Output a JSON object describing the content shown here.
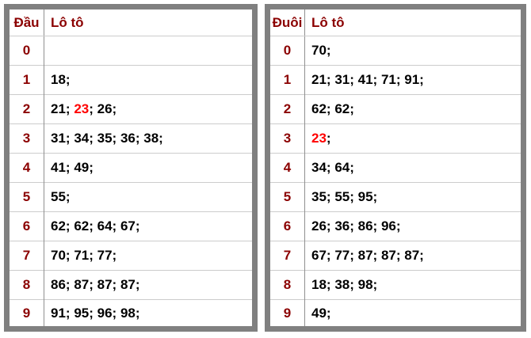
{
  "colors": {
    "table_border": "#808080",
    "column_divider": "#909090",
    "row_divider": "#cccccc",
    "header_text": "#8b0000",
    "value_text": "#000000",
    "highlight_text": "#ff0000"
  },
  "separator": "; ",
  "tables": [
    {
      "id": "dau",
      "header": {
        "digit_label": "Đầu",
        "values_label": "Lô tô"
      },
      "rows": [
        {
          "digit": "0",
          "values": []
        },
        {
          "digit": "1",
          "values": [
            {
              "text": "18",
              "highlight": false
            }
          ]
        },
        {
          "digit": "2",
          "values": [
            {
              "text": "21",
              "highlight": false
            },
            {
              "text": "23",
              "highlight": true
            },
            {
              "text": "26",
              "highlight": false
            }
          ]
        },
        {
          "digit": "3",
          "values": [
            {
              "text": "31",
              "highlight": false
            },
            {
              "text": "34",
              "highlight": false
            },
            {
              "text": "35",
              "highlight": false
            },
            {
              "text": "36",
              "highlight": false
            },
            {
              "text": "38",
              "highlight": false
            }
          ]
        },
        {
          "digit": "4",
          "values": [
            {
              "text": "41",
              "highlight": false
            },
            {
              "text": "49",
              "highlight": false
            }
          ]
        },
        {
          "digit": "5",
          "values": [
            {
              "text": "55",
              "highlight": false
            }
          ]
        },
        {
          "digit": "6",
          "values": [
            {
              "text": "62",
              "highlight": false
            },
            {
              "text": "62",
              "highlight": false
            },
            {
              "text": "64",
              "highlight": false
            },
            {
              "text": "67",
              "highlight": false
            }
          ]
        },
        {
          "digit": "7",
          "values": [
            {
              "text": "70",
              "highlight": false
            },
            {
              "text": "71",
              "highlight": false
            },
            {
              "text": "77",
              "highlight": false
            }
          ]
        },
        {
          "digit": "8",
          "values": [
            {
              "text": "86",
              "highlight": false
            },
            {
              "text": "87",
              "highlight": false
            },
            {
              "text": "87",
              "highlight": false
            },
            {
              "text": "87",
              "highlight": false
            }
          ]
        },
        {
          "digit": "9",
          "values": [
            {
              "text": "91",
              "highlight": false
            },
            {
              "text": "95",
              "highlight": false
            },
            {
              "text": "96",
              "highlight": false
            },
            {
              "text": "98",
              "highlight": false
            }
          ]
        }
      ]
    },
    {
      "id": "duoi",
      "header": {
        "digit_label": "Đuôi",
        "values_label": "Lô tô"
      },
      "rows": [
        {
          "digit": "0",
          "values": [
            {
              "text": "70",
              "highlight": false
            }
          ]
        },
        {
          "digit": "1",
          "values": [
            {
              "text": "21",
              "highlight": false
            },
            {
              "text": "31",
              "highlight": false
            },
            {
              "text": "41",
              "highlight": false
            },
            {
              "text": "71",
              "highlight": false
            },
            {
              "text": "91",
              "highlight": false
            }
          ]
        },
        {
          "digit": "2",
          "values": [
            {
              "text": "62",
              "highlight": false
            },
            {
              "text": "62",
              "highlight": false
            }
          ]
        },
        {
          "digit": "3",
          "values": [
            {
              "text": "23",
              "highlight": true
            }
          ]
        },
        {
          "digit": "4",
          "values": [
            {
              "text": "34",
              "highlight": false
            },
            {
              "text": "64",
              "highlight": false
            }
          ]
        },
        {
          "digit": "5",
          "values": [
            {
              "text": "35",
              "highlight": false
            },
            {
              "text": "55",
              "highlight": false
            },
            {
              "text": "95",
              "highlight": false
            }
          ]
        },
        {
          "digit": "6",
          "values": [
            {
              "text": "26",
              "highlight": false
            },
            {
              "text": "36",
              "highlight": false
            },
            {
              "text": "86",
              "highlight": false
            },
            {
              "text": "96",
              "highlight": false
            }
          ]
        },
        {
          "digit": "7",
          "values": [
            {
              "text": "67",
              "highlight": false
            },
            {
              "text": "77",
              "highlight": false
            },
            {
              "text": "87",
              "highlight": false
            },
            {
              "text": "87",
              "highlight": false
            },
            {
              "text": "87",
              "highlight": false
            }
          ]
        },
        {
          "digit": "8",
          "values": [
            {
              "text": "18",
              "highlight": false
            },
            {
              "text": "38",
              "highlight": false
            },
            {
              "text": "98",
              "highlight": false
            }
          ]
        },
        {
          "digit": "9",
          "values": [
            {
              "text": "49",
              "highlight": false
            }
          ]
        }
      ]
    }
  ]
}
